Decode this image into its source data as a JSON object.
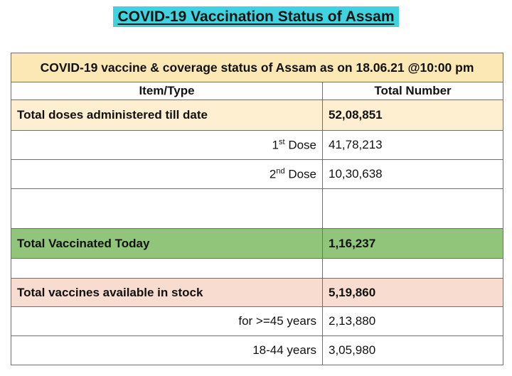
{
  "page": {
    "title": "COVID-19 Vaccination Status of Assam"
  },
  "table": {
    "heading": "COVID-19 vaccine & coverage status of Assam as on 18.06.21 @10:00 pm",
    "columns": {
      "item": "Item/Type",
      "total": "Total Number"
    },
    "total_doses": {
      "label": "Total doses administered till date",
      "value": "52,08,851"
    },
    "first_dose": {
      "ordinal": "1",
      "suffix": "st",
      "label": "Dose",
      "value": "41,78,213"
    },
    "second_dose": {
      "ordinal": "2",
      "suffix": "nd",
      "label": "Dose",
      "value": "10,30,638"
    },
    "vaccinated_today": {
      "label": "Total Vaccinated Today",
      "value": "1,16,237"
    },
    "stock": {
      "label": "Total vaccines available in stock",
      "value": "5,19,860"
    },
    "stock_45_plus": {
      "label": "for >=45 years",
      "value": "2,13,880"
    },
    "stock_18_44": {
      "label": "18-44 years",
      "value": "3,05,980"
    }
  },
  "colors": {
    "title_highlight": "#3fd3e0",
    "heading_background": "#fce8b4",
    "doses_background": "#fdefcf",
    "today_background": "#90c57a",
    "stock_background": "#f9dcd0"
  }
}
